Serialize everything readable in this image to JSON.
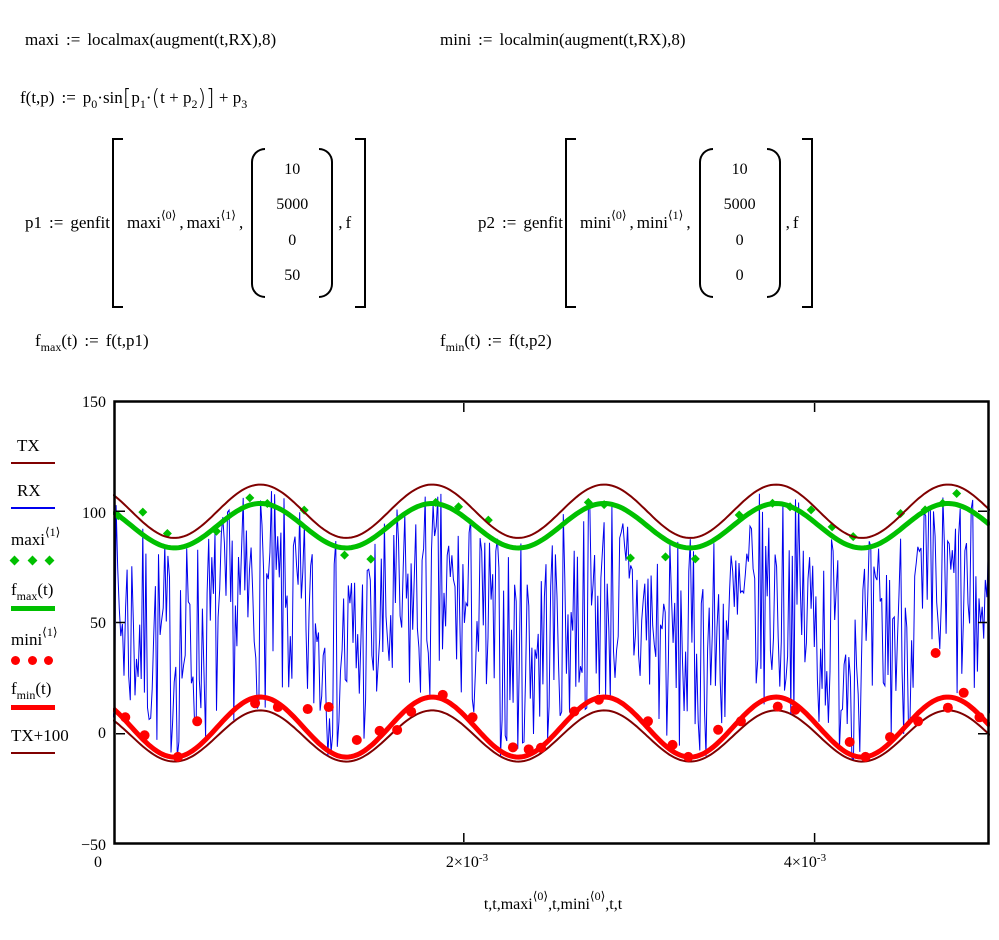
{
  "formulas": {
    "maxi_def": {
      "lhs": "maxi",
      "op": ":=",
      "rhs": "localmax(augment(t,RX),8)"
    },
    "mini_def": {
      "lhs": "mini",
      "op": ":=",
      "rhs": "localmin(augment(t,RX),8)"
    },
    "f_def": {
      "lhs": "f(t,p)",
      "op": ":=",
      "p": "p",
      "s0": "0",
      "sinword": "·sin",
      "lsq": "[",
      "s1": "1",
      "cdot": "·",
      "lp": "(",
      "mid": "t + p",
      "s2": "2",
      "rp": ")",
      "rsq": "]",
      "tail": "+ p",
      "s3": "3"
    },
    "p1_def": {
      "lhs": "p1",
      "op": ":=",
      "func": "genfit",
      "arg": "maxi",
      "sup0": "⟨0⟩",
      "sup1": "⟨1⟩",
      "comma": ",",
      "vector": [
        "10",
        "5000",
        "0",
        "50"
      ],
      "farg": "f"
    },
    "p2_def": {
      "lhs": "p2",
      "op": ":=",
      "func": "genfit",
      "arg": "mini",
      "sup0": "⟨0⟩",
      "sup1": "⟨1⟩",
      "comma": ",",
      "vector": [
        "10",
        "5000",
        "0",
        "0"
      ],
      "farg": "f"
    },
    "fmax_def": {
      "fname": "f",
      "sub": "max",
      "args": "(t)",
      "op": ":=",
      "rhs": "f(t,p1)"
    },
    "fmin_def": {
      "fname": "f",
      "sub": "min",
      "args": "(t)",
      "op": ":=",
      "rhs": "f(t,p2)"
    }
  },
  "legend": {
    "position": "left",
    "items": [
      {
        "label": "TX",
        "type": "line",
        "color": "#800000",
        "weight": 2
      },
      {
        "label": "RX",
        "type": "line",
        "color": "#0000ee",
        "weight": 2
      },
      {
        "label": "maxi",
        "sup": "⟨1⟩",
        "type": "dots-diamond",
        "color": "#00c000"
      },
      {
        "label": "f",
        "sub": "max",
        "rest": "(t)",
        "type": "line-thick",
        "color": "#00c000"
      },
      {
        "label": "mini",
        "sup": "⟨1⟩",
        "type": "dots-round",
        "color": "#ff0000"
      },
      {
        "label": "f",
        "sub": "min",
        "rest": "(t)",
        "type": "line-thick",
        "color": "#ff0000"
      },
      {
        "label": "TX+100",
        "type": "line",
        "color": "#800000",
        "weight": 2
      }
    ]
  },
  "chart_data": {
    "type": "line",
    "title": "",
    "xlabel_parts": [
      "t,t,maxi",
      "⟨0⟩",
      ",t,mini",
      "⟨0⟩",
      ",t,t"
    ],
    "x_tick_labels": [
      {
        "base": "0",
        "exp": ""
      },
      {
        "base": "2×10",
        "exp": "-3"
      },
      {
        "base": "4×10",
        "exp": "-3"
      }
    ],
    "y_tick_labels": [
      "150",
      "100",
      "50",
      "0",
      "−50"
    ],
    "x_tick_values": [
      0,
      0.002,
      0.004
    ],
    "y_tick_values": [
      150,
      100,
      50,
      0,
      -50
    ],
    "xlim": [
      0,
      0.005
    ],
    "ylim": [
      -50,
      150
    ],
    "grid": false,
    "legend_position": "left",
    "series": [
      {
        "name": "TX",
        "kind": "sine",
        "mean": -1,
        "amp": 11.5,
        "period": 0.00098,
        "t_peak": 0.00084,
        "color": "#800000",
        "width": 2
      },
      {
        "name": "RX",
        "kind": "noise",
        "base": "TX",
        "spread": 100,
        "n": 560,
        "seed": 7,
        "color": "#0000ee",
        "width": 1
      },
      {
        "name": "maxi<1>",
        "kind": "scatter",
        "marker": "diamond",
        "color": "#00c000",
        "points": [
          [
            3e-05,
            98
          ],
          [
            0.00017,
            99.6
          ],
          [
            0.00031,
            90
          ],
          [
            0.00059,
            91
          ],
          [
            0.00078,
            106
          ],
          [
            0.00088,
            103.5
          ],
          [
            0.00109,
            100.5
          ],
          [
            0.00132,
            80.3
          ],
          [
            0.00147,
            78.5
          ],
          [
            0.00184,
            104
          ],
          [
            0.00197,
            102
          ],
          [
            0.00214,
            96
          ],
          [
            0.00271,
            104
          ],
          [
            0.0028,
            103
          ],
          [
            0.00295,
            79
          ],
          [
            0.00315,
            79.5
          ],
          [
            0.00332,
            78.6
          ],
          [
            0.00357,
            98.3
          ],
          [
            0.00376,
            103.6
          ],
          [
            0.00386,
            102
          ],
          [
            0.00398,
            100.6
          ],
          [
            0.0041,
            93
          ],
          [
            0.00422,
            88.6
          ],
          [
            0.00449,
            99
          ],
          [
            0.00463,
            100.6
          ],
          [
            0.00473,
            103.6
          ],
          [
            0.00481,
            108
          ]
        ]
      },
      {
        "name": "f_max(t)",
        "kind": "sine",
        "mean": 93.5,
        "amp": 10,
        "period": 0.00098,
        "t_peak": 0.00084,
        "color": "#00c000",
        "width": 5
      },
      {
        "name": "mini<1>",
        "kind": "scatter",
        "marker": "circle",
        "color": "#ff0000",
        "points": [
          [
            7e-05,
            7.4
          ],
          [
            0.00018,
            -0.7
          ],
          [
            0.00037,
            -10.4
          ],
          [
            0.00048,
            5.6
          ],
          [
            0.00081,
            13.7
          ],
          [
            0.00094,
            12
          ],
          [
            0.00111,
            11.1
          ],
          [
            0.00123,
            12
          ],
          [
            0.00139,
            -2.8
          ],
          [
            0.00152,
            1.3
          ],
          [
            0.00162,
            1.7
          ],
          [
            0.0017,
            9.9
          ],
          [
            0.00188,
            17.5
          ],
          [
            0.00205,
            7.4
          ],
          [
            0.00228,
            -6.1
          ],
          [
            0.00237,
            -7
          ],
          [
            0.00244,
            -6.3
          ],
          [
            0.00263,
            10
          ],
          [
            0.00277,
            15.3
          ],
          [
            0.00305,
            5.6
          ],
          [
            0.00319,
            -5
          ],
          [
            0.00328,
            -10.4
          ],
          [
            0.00345,
            1.8
          ],
          [
            0.00358,
            5.6
          ],
          [
            0.00379,
            12.2
          ],
          [
            0.00389,
            10.8
          ],
          [
            0.0042,
            -3.7
          ],
          [
            0.00429,
            -10.4
          ],
          [
            0.00443,
            -1.5
          ],
          [
            0.00459,
            5.6
          ],
          [
            0.00469,
            36.3
          ],
          [
            0.00476,
            11.7
          ],
          [
            0.00485,
            18.4
          ],
          [
            0.00494,
            7.4
          ]
        ]
      },
      {
        "name": "f_min(t)",
        "kind": "sine",
        "mean": 3,
        "amp": 13.5,
        "period": 0.00098,
        "t_peak": 0.00084,
        "color": "#ff0000",
        "width": 5
      },
      {
        "name": "TX+100",
        "kind": "sine",
        "mean": 100,
        "amp": 12,
        "period": 0.00098,
        "t_peak": 0.00084,
        "color": "#800000",
        "width": 2
      }
    ]
  }
}
